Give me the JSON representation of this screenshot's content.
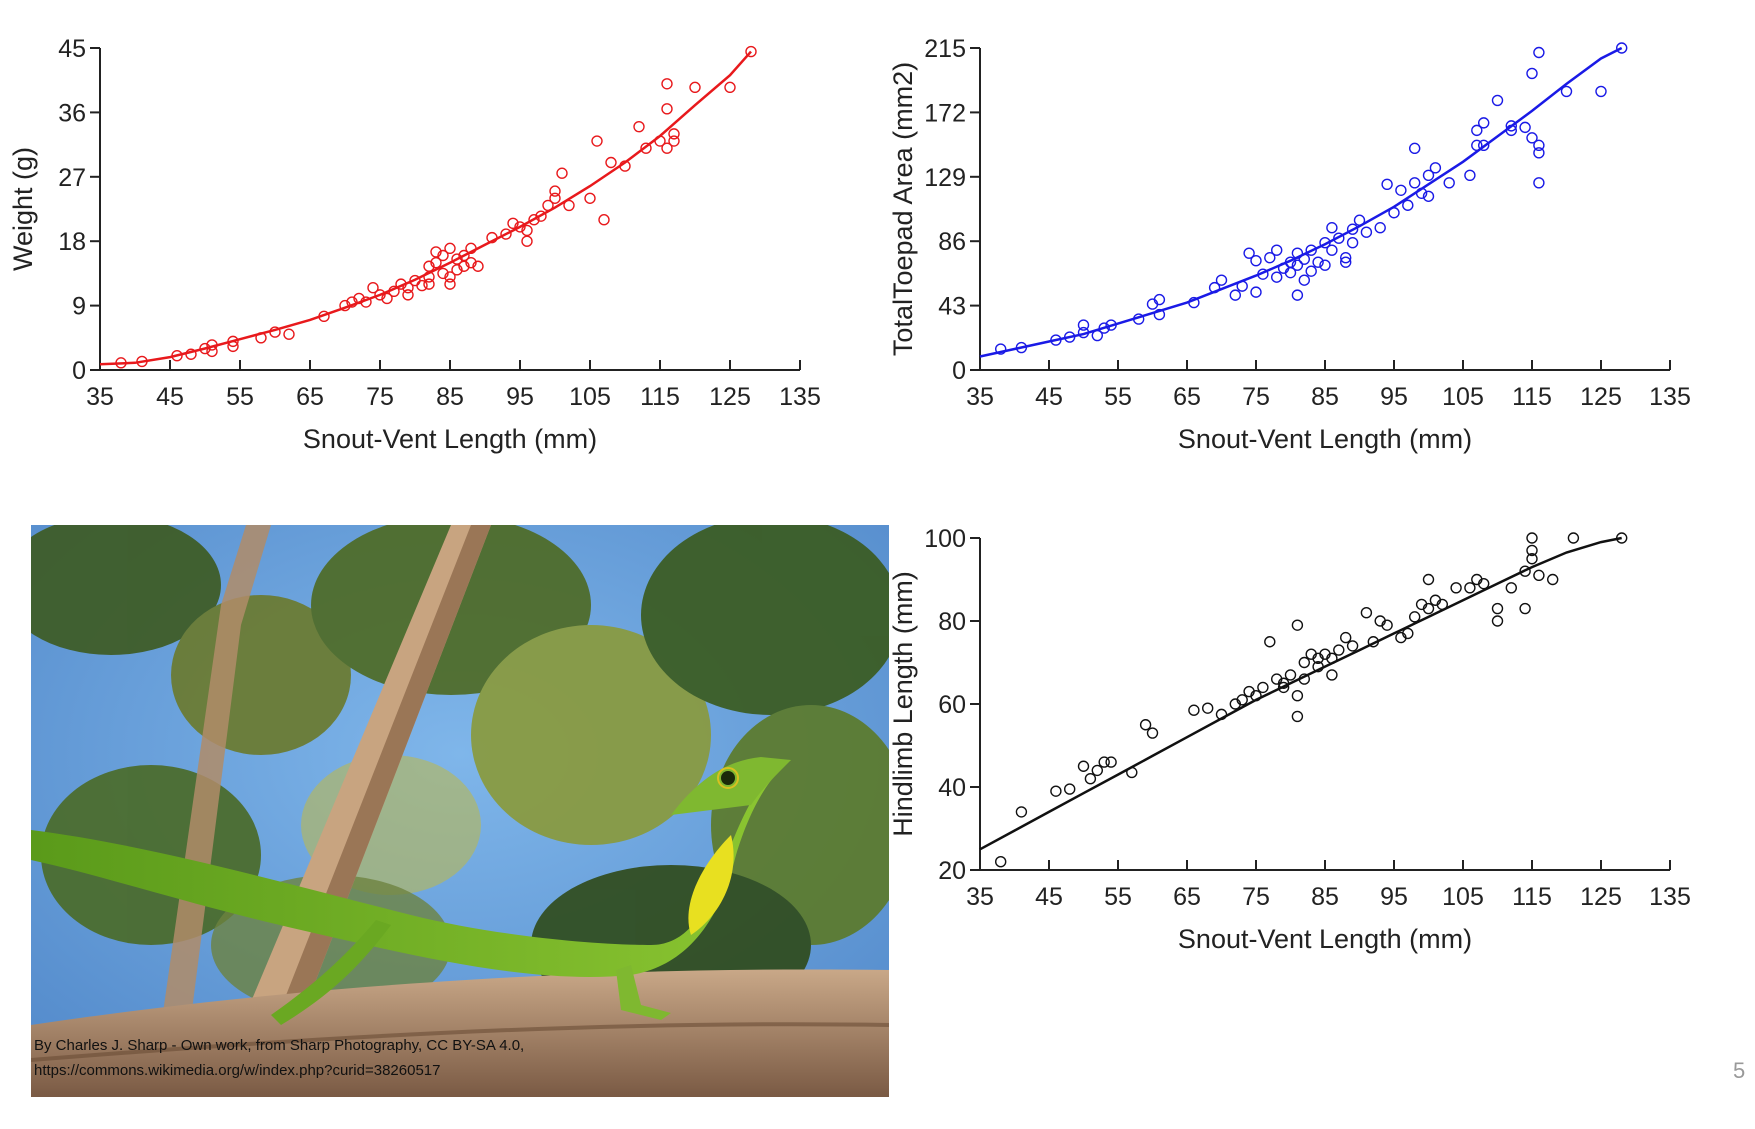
{
  "chart_data": [
    {
      "type": "scatter",
      "title": "",
      "xlabel": "Snout-Vent Length (mm)",
      "ylabel": "Weight (g)",
      "xlim": [
        35,
        135
      ],
      "ylim": [
        0,
        45
      ],
      "xticks": [
        35,
        45,
        55,
        65,
        75,
        85,
        95,
        105,
        115,
        125,
        135
      ],
      "yticks": [
        0,
        9,
        18,
        27,
        36,
        45
      ],
      "color": "#e8191c",
      "grid": false,
      "points": [
        [
          38,
          1
        ],
        [
          41,
          1.2
        ],
        [
          46,
          2
        ],
        [
          48,
          2.2
        ],
        [
          50,
          3
        ],
        [
          51,
          2.6
        ],
        [
          51,
          3.5
        ],
        [
          54,
          3.3
        ],
        [
          54,
          4
        ],
        [
          58,
          4.5
        ],
        [
          60,
          5.3
        ],
        [
          62,
          5
        ],
        [
          67,
          7.5
        ],
        [
          70,
          9
        ],
        [
          71,
          9.5
        ],
        [
          72,
          10
        ],
        [
          73,
          9.5
        ],
        [
          74,
          11.5
        ],
        [
          75,
          10.5
        ],
        [
          76,
          10
        ],
        [
          77,
          11
        ],
        [
          78,
          12
        ],
        [
          79,
          11.5
        ],
        [
          79,
          10.5
        ],
        [
          80,
          12.5
        ],
        [
          81,
          11.8
        ],
        [
          82,
          13
        ],
        [
          82,
          12
        ],
        [
          82,
          14.5
        ],
        [
          83,
          15
        ],
        [
          83,
          16.5
        ],
        [
          84,
          16
        ],
        [
          84,
          13.5
        ],
        [
          85,
          12
        ],
        [
          85,
          13
        ],
        [
          85,
          17
        ],
        [
          86,
          14
        ],
        [
          86,
          15.5
        ],
        [
          87,
          16
        ],
        [
          87,
          14.5
        ],
        [
          88,
          17
        ],
        [
          88,
          15
        ],
        [
          89,
          14.5
        ],
        [
          91,
          18.5
        ],
        [
          93,
          19
        ],
        [
          94,
          20.5
        ],
        [
          95,
          20
        ],
        [
          96,
          18
        ],
        [
          96,
          19.5
        ],
        [
          97,
          21
        ],
        [
          98,
          21.5
        ],
        [
          99,
          23
        ],
        [
          100,
          25
        ],
        [
          100,
          24
        ],
        [
          101,
          27.5
        ],
        [
          102,
          23
        ],
        [
          105,
          24
        ],
        [
          106,
          32
        ],
        [
          107,
          21
        ],
        [
          108,
          29
        ],
        [
          110,
          28.5
        ],
        [
          112,
          34
        ],
        [
          113,
          31
        ],
        [
          115,
          32
        ],
        [
          116,
          36.5
        ],
        [
          116,
          40
        ],
        [
          116,
          31
        ],
        [
          117,
          33
        ],
        [
          117,
          32
        ],
        [
          120,
          39.5
        ],
        [
          125,
          39.5
        ],
        [
          128,
          44.5
        ]
      ],
      "fit": [
        [
          35,
          0.8
        ],
        [
          40,
          1.0
        ],
        [
          45,
          1.8
        ],
        [
          50,
          3.0
        ],
        [
          55,
          4.3
        ],
        [
          60,
          5.6
        ],
        [
          65,
          7.0
        ],
        [
          70,
          8.7
        ],
        [
          75,
          10.5
        ],
        [
          80,
          12.6
        ],
        [
          85,
          15.0
        ],
        [
          90,
          17.5
        ],
        [
          95,
          20.0
        ],
        [
          100,
          22.7
        ],
        [
          105,
          25.7
        ],
        [
          110,
          29.0
        ],
        [
          115,
          32.7
        ],
        [
          120,
          37.0
        ],
        [
          125,
          41.2
        ],
        [
          128,
          44.5
        ]
      ]
    },
    {
      "type": "scatter",
      "title": "",
      "xlabel": "Snout-Vent Length (mm)",
      "ylabel": "TotalToepad Area (mm2)",
      "xlim": [
        35,
        135
      ],
      "ylim": [
        0,
        215
      ],
      "xticks": [
        35,
        45,
        55,
        65,
        75,
        85,
        95,
        105,
        115,
        125,
        135
      ],
      "yticks": [
        0,
        43,
        86,
        129,
        172,
        215
      ],
      "color": "#1a1ae6",
      "grid": false,
      "points": [
        [
          38,
          14
        ],
        [
          41,
          15
        ],
        [
          46,
          20
        ],
        [
          48,
          22
        ],
        [
          50,
          30
        ],
        [
          50,
          25
        ],
        [
          52,
          23
        ],
        [
          53,
          28
        ],
        [
          54,
          30
        ],
        [
          58,
          34
        ],
        [
          60,
          44
        ],
        [
          61,
          47
        ],
        [
          61,
          37
        ],
        [
          66,
          45
        ],
        [
          69,
          55
        ],
        [
          70,
          60
        ],
        [
          72,
          50
        ],
        [
          73,
          56
        ],
        [
          74,
          78
        ],
        [
          75,
          52
        ],
        [
          75,
          73
        ],
        [
          76,
          64
        ],
        [
          77,
          75
        ],
        [
          78,
          80
        ],
        [
          78,
          62
        ],
        [
          79,
          68
        ],
        [
          80,
          72
        ],
        [
          80,
          65
        ],
        [
          81,
          70
        ],
        [
          81,
          50
        ],
        [
          81,
          78
        ],
        [
          82,
          74
        ],
        [
          82,
          60
        ],
        [
          83,
          80
        ],
        [
          83,
          66
        ],
        [
          84,
          72
        ],
        [
          85,
          85
        ],
        [
          85,
          70
        ],
        [
          86,
          80
        ],
        [
          86,
          95
        ],
        [
          87,
          88
        ],
        [
          88,
          72
        ],
        [
          88,
          75
        ],
        [
          89,
          94
        ],
        [
          89,
          85
        ],
        [
          90,
          100
        ],
        [
          91,
          92
        ],
        [
          93,
          95
        ],
        [
          94,
          124
        ],
        [
          95,
          105
        ],
        [
          96,
          120
        ],
        [
          97,
          110
        ],
        [
          98,
          148
        ],
        [
          98,
          125
        ],
        [
          99,
          118
        ],
        [
          100,
          130
        ],
        [
          100,
          116
        ],
        [
          101,
          135
        ],
        [
          103,
          125
        ],
        [
          106,
          130
        ],
        [
          107,
          150
        ],
        [
          107,
          160
        ],
        [
          108,
          165
        ],
        [
          108,
          150
        ],
        [
          110,
          180
        ],
        [
          112,
          160
        ],
        [
          112,
          163
        ],
        [
          114,
          162
        ],
        [
          115,
          198
        ],
        [
          115,
          155
        ],
        [
          116,
          212
        ],
        [
          116,
          145
        ],
        [
          116,
          150
        ],
        [
          116,
          125
        ],
        [
          120,
          186
        ],
        [
          125,
          186
        ],
        [
          128,
          215
        ]
      ],
      "fit": [
        [
          35,
          9
        ],
        [
          40,
          14
        ],
        [
          45,
          19
        ],
        [
          50,
          24
        ],
        [
          55,
          31
        ],
        [
          60,
          38
        ],
        [
          65,
          45
        ],
        [
          70,
          54
        ],
        [
          75,
          63
        ],
        [
          80,
          73
        ],
        [
          85,
          84
        ],
        [
          90,
          96
        ],
        [
          95,
          109
        ],
        [
          100,
          124
        ],
        [
          105,
          139
        ],
        [
          110,
          156
        ],
        [
          115,
          173
        ],
        [
          120,
          191
        ],
        [
          125,
          208
        ],
        [
          128,
          215
        ]
      ]
    },
    {
      "type": "scatter",
      "title": "",
      "xlabel": "Snout-Vent Length (mm)",
      "ylabel": "Hindlimb Length (mm)",
      "xlim": [
        35,
        135
      ],
      "ylim": [
        20,
        100
      ],
      "xticks": [
        35,
        45,
        55,
        65,
        75,
        85,
        95,
        105,
        115,
        125,
        135
      ],
      "yticks": [
        20,
        40,
        60,
        80,
        100
      ],
      "color": "#111111",
      "grid": false,
      "points": [
        [
          38,
          22
        ],
        [
          41,
          34
        ],
        [
          46,
          39
        ],
        [
          48,
          39.5
        ],
        [
          50,
          45
        ],
        [
          51,
          42
        ],
        [
          52,
          44
        ],
        [
          53,
          46
        ],
        [
          54,
          46
        ],
        [
          57,
          43.5
        ],
        [
          59,
          55
        ],
        [
          60,
          53
        ],
        [
          66,
          58.5
        ],
        [
          68,
          59
        ],
        [
          70,
          57.5
        ],
        [
          72,
          60
        ],
        [
          73,
          61
        ],
        [
          74,
          63
        ],
        [
          75,
          62
        ],
        [
          76,
          64
        ],
        [
          77,
          75
        ],
        [
          78,
          66
        ],
        [
          79,
          65
        ],
        [
          79,
          64
        ],
        [
          80,
          67
        ],
        [
          81,
          57
        ],
        [
          81,
          62
        ],
        [
          81,
          79
        ],
        [
          82,
          70
        ],
        [
          82,
          66
        ],
        [
          83,
          72
        ],
        [
          84,
          71
        ],
        [
          84,
          69
        ],
        [
          85,
          72
        ],
        [
          86,
          67
        ],
        [
          86,
          71
        ],
        [
          87,
          73
        ],
        [
          88,
          76
        ],
        [
          89,
          74
        ],
        [
          91,
          82
        ],
        [
          92,
          75
        ],
        [
          93,
          80
        ],
        [
          94,
          79
        ],
        [
          96,
          76
        ],
        [
          97,
          77
        ],
        [
          98,
          81
        ],
        [
          99,
          84
        ],
        [
          100,
          90
        ],
        [
          100,
          83
        ],
        [
          101,
          85
        ],
        [
          102,
          84
        ],
        [
          104,
          88
        ],
        [
          106,
          88
        ],
        [
          107,
          90
        ],
        [
          108,
          89
        ],
        [
          110,
          80
        ],
        [
          110,
          83
        ],
        [
          112,
          88
        ],
        [
          114,
          92
        ],
        [
          114,
          83
        ],
        [
          115,
          95
        ],
        [
          115,
          100
        ],
        [
          115,
          97
        ],
        [
          116,
          91
        ],
        [
          118,
          90
        ],
        [
          121,
          100
        ],
        [
          128,
          100
        ]
      ],
      "fit": [
        [
          35,
          25
        ],
        [
          40,
          29.5
        ],
        [
          45,
          34
        ],
        [
          50,
          38.5
        ],
        [
          55,
          43
        ],
        [
          60,
          47.5
        ],
        [
          65,
          52
        ],
        [
          70,
          56.5
        ],
        [
          75,
          61
        ],
        [
          80,
          65
        ],
        [
          85,
          69
        ],
        [
          90,
          73
        ],
        [
          95,
          77
        ],
        [
          100,
          81
        ],
        [
          105,
          85
        ],
        [
          110,
          89
        ],
        [
          115,
          93
        ],
        [
          120,
          96.5
        ],
        [
          125,
          99
        ],
        [
          128,
          100
        ]
      ]
    }
  ],
  "photo": {
    "credit_line1": "By Charles J. Sharp - Own work, from Sharp Photography, CC BY-SA 4.0,",
    "credit_line2": "https://commons.wikimedia.org/w/index.php?curid=38260517"
  },
  "page_number": "5"
}
